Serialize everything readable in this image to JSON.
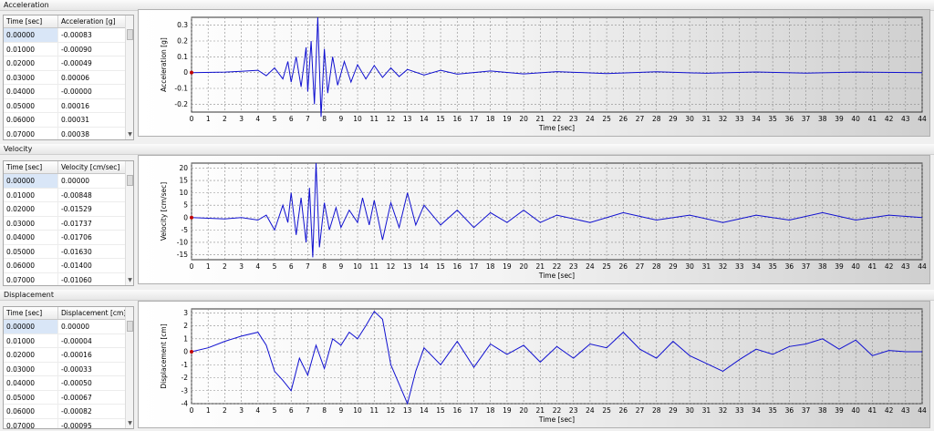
{
  "sections": {
    "acceleration": {
      "title": "Acceleration",
      "col_time": "Time [sec]",
      "col_value": "Acceleration [g]",
      "rows": [
        [
          "0.00000",
          "-0.00083"
        ],
        [
          "0.01000",
          "-0.00090"
        ],
        [
          "0.02000",
          "-0.00049"
        ],
        [
          "0.03000",
          "0.00006"
        ],
        [
          "0.04000",
          "-0.00000"
        ],
        [
          "0.05000",
          "0.00016"
        ],
        [
          "0.06000",
          "0.00031"
        ],
        [
          "0.07000",
          "0.00038"
        ]
      ]
    },
    "velocity": {
      "title": "Velocity",
      "col_time": "Time [sec]",
      "col_value": "Velocity [cm/sec]",
      "rows": [
        [
          "0.00000",
          "0.00000"
        ],
        [
          "0.01000",
          "-0.00848"
        ],
        [
          "0.02000",
          "-0.01529"
        ],
        [
          "0.03000",
          "-0.01737"
        ],
        [
          "0.04000",
          "-0.01706"
        ],
        [
          "0.05000",
          "-0.01630"
        ],
        [
          "0.06000",
          "-0.01400"
        ],
        [
          "0.07000",
          "-0.01060"
        ]
      ]
    },
    "displacement": {
      "title": "Displacement",
      "col_time": "Time [sec]",
      "col_value": "Displacement [cm]",
      "rows": [
        [
          "0.00000",
          "0.00000"
        ],
        [
          "0.01000",
          "-0.00004"
        ],
        [
          "0.02000",
          "-0.00016"
        ],
        [
          "0.03000",
          "-0.00033"
        ],
        [
          "0.04000",
          "-0.00050"
        ],
        [
          "0.05000",
          "-0.00067"
        ],
        [
          "0.06000",
          "-0.00082"
        ],
        [
          "0.07000",
          "-0.00095"
        ]
      ]
    }
  },
  "chart_data": [
    {
      "type": "line",
      "xlabel": "Time [sec]",
      "ylabel": "Acceleration [g]",
      "xlim": [
        0,
        44
      ],
      "ylim": [
        -0.25,
        0.35
      ],
      "yticks": [
        0.3,
        0.2,
        0.1,
        0,
        -0.1,
        -0.2
      ],
      "ytick_labels": [
        "0.3",
        "0.2",
        "0.1",
        "0",
        "-0.1",
        "-0.2"
      ],
      "grid": true,
      "line_color": "#1010d0",
      "series": [
        {
          "x": [
            0,
            2,
            3,
            4,
            4.5,
            5,
            5.5,
            5.8,
            6,
            6.3,
            6.6,
            6.9,
            7.0,
            7.2,
            7.4,
            7.6,
            7.8,
            8.0,
            8.2,
            8.5,
            8.8,
            9.2,
            9.6,
            10,
            10.5,
            11,
            11.5,
            12,
            12.5,
            13,
            14,
            15,
            16,
            18,
            20,
            22,
            25,
            28,
            31,
            34,
            37,
            40,
            44
          ],
          "y": [
            0,
            0.003,
            0.008,
            0.015,
            -0.02,
            0.03,
            -0.04,
            0.07,
            -0.06,
            0.1,
            -0.09,
            0.16,
            -0.12,
            0.2,
            -0.2,
            0.35,
            -0.28,
            0.15,
            -0.13,
            0.1,
            -0.08,
            0.07,
            -0.06,
            0.05,
            -0.04,
            0.045,
            -0.03,
            0.03,
            -0.025,
            0.02,
            -0.015,
            0.015,
            -0.01,
            0.01,
            -0.008,
            0.006,
            -0.006,
            0.005,
            -0.004,
            0.004,
            -0.003,
            0.003,
            0
          ]
        }
      ]
    },
    {
      "type": "line",
      "xlabel": "Time [sec]",
      "ylabel": "Velocity [cm/sec]",
      "xlim": [
        0,
        44
      ],
      "ylim": [
        -17,
        22
      ],
      "yticks": [
        20,
        15,
        10,
        5,
        0,
        -5,
        -10,
        -15
      ],
      "ytick_labels": [
        "20",
        "15",
        "10",
        "5",
        "0",
        "-5",
        "-10",
        "-15"
      ],
      "grid": true,
      "line_color": "#1010d0",
      "series": [
        {
          "x": [
            0,
            2,
            3,
            4,
            4.5,
            5,
            5.5,
            5.8,
            6,
            6.3,
            6.6,
            6.9,
            7.1,
            7.3,
            7.5,
            7.7,
            8,
            8.3,
            8.7,
            9,
            9.5,
            10,
            10.3,
            10.7,
            11,
            11.5,
            12,
            12.5,
            13,
            13.5,
            14,
            15,
            16,
            17,
            18,
            19,
            20,
            21,
            22,
            24,
            26,
            28,
            30,
            32,
            34,
            36,
            38,
            40,
            42,
            44
          ],
          "y": [
            0,
            -0.5,
            0,
            -1,
            1,
            -5,
            5,
            -2,
            10,
            -7,
            8,
            -10,
            12,
            -16,
            22,
            -12,
            6,
            -5,
            4,
            -4,
            3,
            -2,
            8,
            -3,
            7,
            -9,
            6,
            -4,
            10,
            -3,
            5,
            -3,
            3,
            -4,
            2,
            -2,
            3,
            -2,
            1,
            -2,
            2,
            -1,
            1,
            -2,
            1,
            -1,
            2,
            -1,
            1,
            0
          ]
        }
      ]
    },
    {
      "type": "line",
      "xlabel": "Time [sec]",
      "ylabel": "Displacement [cm]",
      "xlim": [
        0,
        44
      ],
      "ylim": [
        -4,
        3.3
      ],
      "yticks": [
        3,
        2,
        1,
        0,
        -1,
        -2,
        -3,
        -4
      ],
      "ytick_labels": [
        "3",
        "2",
        "1",
        "0",
        "-1",
        "-2",
        "-3",
        "-4"
      ],
      "grid": true,
      "line_color": "#1010d0",
      "series": [
        {
          "x": [
            0,
            1,
            2,
            3,
            4,
            4.5,
            5,
            5.5,
            6,
            6.5,
            7,
            7.5,
            8,
            8.5,
            9,
            9.5,
            10,
            10.5,
            11,
            11.5,
            12,
            12.5,
            13,
            13.5,
            14,
            15,
            16,
            17,
            18,
            19,
            20,
            21,
            22,
            23,
            24,
            25,
            26,
            27,
            28,
            29,
            30,
            31,
            32,
            33,
            34,
            35,
            36,
            37,
            38,
            39,
            40,
            41,
            42,
            43,
            44
          ],
          "y": [
            0,
            0.3,
            0.8,
            1.2,
            1.5,
            0.5,
            -1.5,
            -2.2,
            -3.0,
            -0.5,
            -1.8,
            0.5,
            -1.3,
            1.0,
            0.5,
            1.5,
            1.0,
            2.0,
            3.1,
            2.5,
            -1.0,
            -2.5,
            -4.0,
            -1.5,
            0.3,
            -1.0,
            0.8,
            -1.2,
            0.6,
            -0.2,
            0.5,
            -0.8,
            0.4,
            -0.5,
            0.6,
            0.3,
            1.5,
            0.2,
            -0.5,
            0.8,
            -0.3,
            -0.9,
            -1.5,
            -0.6,
            0.2,
            -0.2,
            0.4,
            0.6,
            1.0,
            0.2,
            0.9,
            -0.3,
            0.1,
            0.0,
            0.0
          ]
        }
      ]
    }
  ]
}
